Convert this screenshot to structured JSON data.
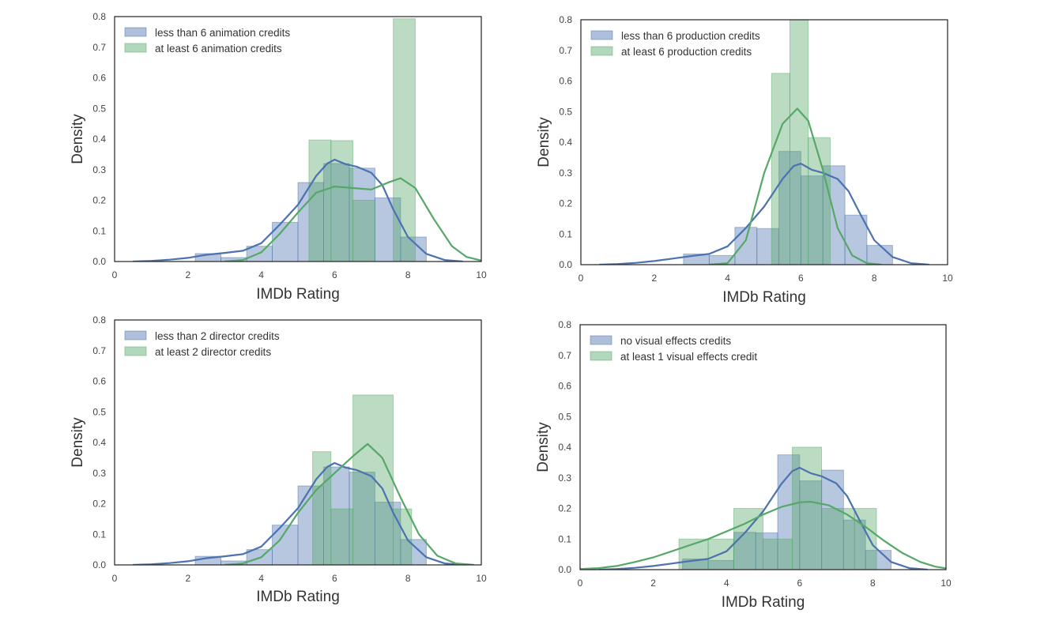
{
  "colors": {
    "series_a": "#4c72b0",
    "series_b": "#55a868",
    "frame": "#222222",
    "background": "#ffffff"
  },
  "chart_data": [
    {
      "type": "bar",
      "subtype": "histogram with density curves",
      "xlabel": "IMDb Rating",
      "ylabel": "Density",
      "xlim": [
        0,
        10
      ],
      "ylim": [
        0,
        0.8
      ],
      "xticks": [
        "0",
        "2",
        "4",
        "6",
        "8",
        "10"
      ],
      "yticks": [
        "0.0",
        "0.1",
        "0.2",
        "0.3",
        "0.4",
        "0.5",
        "0.6",
        "0.7",
        "0.8"
      ],
      "grid": false,
      "legend_position": "top-left",
      "series": [
        {
          "name": "less than 6 animation credits",
          "color": "#4c72b0",
          "bars": [
            [
              2.2,
              2.9,
              0.026
            ],
            [
              2.9,
              3.6,
              0.013
            ],
            [
              3.6,
              4.3,
              0.05
            ],
            [
              4.3,
              5.0,
              0.128
            ],
            [
              5.0,
              5.7,
              0.258
            ],
            [
              5.7,
              6.4,
              0.32
            ],
            [
              6.4,
              7.1,
              0.305
            ],
            [
              7.1,
              7.8,
              0.208
            ],
            [
              7.8,
              8.5,
              0.08
            ]
          ],
          "kde": [
            [
              0.5,
              0
            ],
            [
              1.0,
              0.002
            ],
            [
              1.5,
              0.006
            ],
            [
              2.0,
              0.012
            ],
            [
              2.5,
              0.022
            ],
            [
              3.0,
              0.028
            ],
            [
              3.5,
              0.035
            ],
            [
              4.0,
              0.06
            ],
            [
              4.5,
              0.12
            ],
            [
              5.0,
              0.185
            ],
            [
              5.5,
              0.28
            ],
            [
              5.8,
              0.32
            ],
            [
              6.0,
              0.333
            ],
            [
              6.3,
              0.318
            ],
            [
              6.6,
              0.31
            ],
            [
              7.0,
              0.29
            ],
            [
              7.3,
              0.25
            ],
            [
              7.6,
              0.17
            ],
            [
              8.0,
              0.08
            ],
            [
              8.5,
              0.025
            ],
            [
              9.0,
              0.005
            ],
            [
              9.5,
              0
            ]
          ]
        },
        {
          "name": "at least 6 animation credits",
          "color": "#55a868",
          "bars": [
            [
              5.3,
              5.9,
              0.397
            ],
            [
              5.9,
              6.5,
              0.395
            ],
            [
              6.5,
              7.1,
              0.2
            ],
            [
              7.6,
              8.2,
              0.793
            ]
          ],
          "kde": [
            [
              3.0,
              0
            ],
            [
              3.5,
              0.005
            ],
            [
              4.0,
              0.03
            ],
            [
              4.5,
              0.09
            ],
            [
              5.0,
              0.16
            ],
            [
              5.5,
              0.225
            ],
            [
              6.0,
              0.245
            ],
            [
              6.5,
              0.24
            ],
            [
              7.0,
              0.235
            ],
            [
              7.5,
              0.26
            ],
            [
              7.8,
              0.272
            ],
            [
              8.2,
              0.24
            ],
            [
              8.7,
              0.14
            ],
            [
              9.2,
              0.05
            ],
            [
              9.6,
              0.015
            ],
            [
              10.0,
              0.003
            ]
          ]
        }
      ]
    },
    {
      "type": "bar",
      "subtype": "histogram with density curves",
      "xlabel": "IMDb Rating",
      "ylabel": "Density",
      "xlim": [
        0,
        10
      ],
      "ylim": [
        0,
        0.8
      ],
      "xticks": [
        "0",
        "2",
        "4",
        "6",
        "8",
        "10"
      ],
      "yticks": [
        "0.0",
        "0.1",
        "0.2",
        "0.3",
        "0.4",
        "0.5",
        "0.6",
        "0.7",
        "0.8"
      ],
      "grid": false,
      "legend_position": "top-left",
      "series": [
        {
          "name": "less than 6 production credits",
          "color": "#4c72b0",
          "bars": [
            [
              2.8,
              3.5,
              0.035
            ],
            [
              3.5,
              4.2,
              0.03
            ],
            [
              4.2,
              4.8,
              0.122
            ],
            [
              4.8,
              5.4,
              0.118
            ],
            [
              5.4,
              6.0,
              0.37
            ],
            [
              6.0,
              6.6,
              0.29
            ],
            [
              6.6,
              7.2,
              0.323
            ],
            [
              7.2,
              7.8,
              0.162
            ],
            [
              7.8,
              8.5,
              0.063
            ]
          ],
          "kde": [
            [
              0.5,
              0
            ],
            [
              1.0,
              0.002
            ],
            [
              1.5,
              0.006
            ],
            [
              2.0,
              0.012
            ],
            [
              2.5,
              0.02
            ],
            [
              3.0,
              0.028
            ],
            [
              3.5,
              0.035
            ],
            [
              4.0,
              0.06
            ],
            [
              4.5,
              0.12
            ],
            [
              5.0,
              0.19
            ],
            [
              5.5,
              0.28
            ],
            [
              5.8,
              0.322
            ],
            [
              6.0,
              0.33
            ],
            [
              6.3,
              0.31
            ],
            [
              6.6,
              0.3
            ],
            [
              7.0,
              0.28
            ],
            [
              7.3,
              0.24
            ],
            [
              7.6,
              0.17
            ],
            [
              8.0,
              0.08
            ],
            [
              8.5,
              0.025
            ],
            [
              9.0,
              0.005
            ],
            [
              9.5,
              0
            ]
          ]
        },
        {
          "name": "at least 6 production credits",
          "color": "#55a868",
          "bars": [
            [
              5.2,
              5.7,
              0.625
            ],
            [
              5.7,
              6.2,
              0.81
            ],
            [
              6.2,
              6.8,
              0.415
            ]
          ],
          "kde": [
            [
              3.5,
              0
            ],
            [
              4.0,
              0.005
            ],
            [
              4.5,
              0.08
            ],
            [
              5.0,
              0.3
            ],
            [
              5.5,
              0.46
            ],
            [
              5.9,
              0.51
            ],
            [
              6.2,
              0.47
            ],
            [
              6.6,
              0.31
            ],
            [
              7.0,
              0.12
            ],
            [
              7.4,
              0.03
            ],
            [
              7.8,
              0.005
            ],
            [
              8.2,
              0
            ]
          ]
        }
      ]
    },
    {
      "type": "bar",
      "subtype": "histogram with density curves",
      "xlabel": "IMDb Rating",
      "ylabel": "Density",
      "xlim": [
        0,
        10
      ],
      "ylim": [
        0,
        0.8
      ],
      "xticks": [
        "0",
        "2",
        "4",
        "6",
        "8",
        "10"
      ],
      "yticks": [
        "0.0",
        "0.1",
        "0.2",
        "0.3",
        "0.4",
        "0.5",
        "0.6",
        "0.7",
        "0.8"
      ],
      "grid": false,
      "legend_position": "top-left",
      "series": [
        {
          "name": "less than 2 director credits",
          "color": "#4c72b0",
          "bars": [
            [
              2.2,
              2.9,
              0.028
            ],
            [
              2.9,
              3.6,
              0.013
            ],
            [
              3.6,
              4.3,
              0.05
            ],
            [
              4.3,
              5.0,
              0.13
            ],
            [
              5.0,
              5.7,
              0.258
            ],
            [
              5.7,
              6.4,
              0.32
            ],
            [
              6.4,
              7.1,
              0.303
            ],
            [
              7.1,
              7.8,
              0.205
            ],
            [
              7.8,
              8.5,
              0.083
            ]
          ],
          "kde": [
            [
              0.5,
              0
            ],
            [
              1.0,
              0.002
            ],
            [
              1.5,
              0.006
            ],
            [
              2.0,
              0.012
            ],
            [
              2.5,
              0.022
            ],
            [
              3.0,
              0.028
            ],
            [
              3.5,
              0.035
            ],
            [
              4.0,
              0.06
            ],
            [
              4.5,
              0.12
            ],
            [
              5.0,
              0.185
            ],
            [
              5.5,
              0.28
            ],
            [
              5.8,
              0.32
            ],
            [
              6.0,
              0.333
            ],
            [
              6.3,
              0.318
            ],
            [
              6.6,
              0.31
            ],
            [
              7.0,
              0.29
            ],
            [
              7.3,
              0.25
            ],
            [
              7.6,
              0.17
            ],
            [
              8.0,
              0.08
            ],
            [
              8.5,
              0.025
            ],
            [
              9.0,
              0.005
            ],
            [
              9.5,
              0
            ]
          ]
        },
        {
          "name": "at least 2 director credits",
          "color": "#55a868",
          "bars": [
            [
              5.4,
              5.9,
              0.37
            ],
            [
              5.9,
              6.5,
              0.183
            ],
            [
              6.5,
              7.6,
              0.555
            ],
            [
              7.6,
              8.1,
              0.183
            ]
          ],
          "kde": [
            [
              3.0,
              0
            ],
            [
              3.5,
              0.005
            ],
            [
              4.0,
              0.025
            ],
            [
              4.5,
              0.08
            ],
            [
              5.0,
              0.17
            ],
            [
              5.5,
              0.245
            ],
            [
              6.0,
              0.3
            ],
            [
              6.5,
              0.355
            ],
            [
              6.9,
              0.395
            ],
            [
              7.3,
              0.35
            ],
            [
              7.8,
              0.22
            ],
            [
              8.3,
              0.1
            ],
            [
              8.8,
              0.03
            ],
            [
              9.3,
              0.005
            ],
            [
              9.8,
              0
            ]
          ]
        }
      ]
    },
    {
      "type": "bar",
      "subtype": "histogram with density curves",
      "xlabel": "IMDb Rating",
      "ylabel": "Density",
      "xlim": [
        0,
        10
      ],
      "ylim": [
        0,
        0.8
      ],
      "xticks": [
        "0",
        "2",
        "4",
        "6",
        "8",
        "10"
      ],
      "yticks": [
        "0.0",
        "0.1",
        "0.2",
        "0.3",
        "0.4",
        "0.5",
        "0.6",
        "0.7",
        "0.8"
      ],
      "grid": false,
      "legend_position": "top-left",
      "series": [
        {
          "name": "no visual effects credits",
          "color": "#4c72b0",
          "bars": [
            [
              2.8,
              3.5,
              0.035
            ],
            [
              3.5,
              4.2,
              0.03
            ],
            [
              4.2,
              4.8,
              0.122
            ],
            [
              4.8,
              5.4,
              0.12
            ],
            [
              5.4,
              6.0,
              0.375
            ],
            [
              6.0,
              6.6,
              0.29
            ],
            [
              6.6,
              7.2,
              0.325
            ],
            [
              7.2,
              7.8,
              0.162
            ],
            [
              7.8,
              8.5,
              0.063
            ]
          ],
          "kde": [
            [
              0.5,
              0
            ],
            [
              1.0,
              0.002
            ],
            [
              1.5,
              0.006
            ],
            [
              2.0,
              0.012
            ],
            [
              2.5,
              0.02
            ],
            [
              3.0,
              0.028
            ],
            [
              3.5,
              0.035
            ],
            [
              4.0,
              0.06
            ],
            [
              4.5,
              0.12
            ],
            [
              5.0,
              0.19
            ],
            [
              5.5,
              0.28
            ],
            [
              5.8,
              0.322
            ],
            [
              6.0,
              0.333
            ],
            [
              6.3,
              0.315
            ],
            [
              6.6,
              0.305
            ],
            [
              7.0,
              0.282
            ],
            [
              7.3,
              0.24
            ],
            [
              7.6,
              0.17
            ],
            [
              8.0,
              0.08
            ],
            [
              8.5,
              0.025
            ],
            [
              9.0,
              0.005
            ],
            [
              9.5,
              0
            ]
          ]
        },
        {
          "name": "at least 1 visual effects credit",
          "color": "#55a868",
          "bars": [
            [
              2.7,
              3.5,
              0.1
            ],
            [
              3.5,
              4.2,
              0.1
            ],
            [
              4.2,
              5.0,
              0.2
            ],
            [
              5.0,
              5.8,
              0.1
            ],
            [
              5.8,
              6.6,
              0.4
            ],
            [
              6.6,
              7.5,
              0.2
            ],
            [
              7.5,
              8.1,
              0.2
            ]
          ],
          "kde": [
            [
              0,
              0.002
            ],
            [
              0.5,
              0.005
            ],
            [
              1.0,
              0.012
            ],
            [
              1.5,
              0.025
            ],
            [
              2.0,
              0.04
            ],
            [
              2.5,
              0.06
            ],
            [
              3.0,
              0.08
            ],
            [
              3.5,
              0.1
            ],
            [
              4.0,
              0.125
            ],
            [
              4.5,
              0.15
            ],
            [
              5.0,
              0.18
            ],
            [
              5.5,
              0.205
            ],
            [
              6.0,
              0.22
            ],
            [
              6.3,
              0.222
            ],
            [
              6.8,
              0.21
            ],
            [
              7.3,
              0.18
            ],
            [
              7.8,
              0.14
            ],
            [
              8.3,
              0.095
            ],
            [
              8.8,
              0.055
            ],
            [
              9.3,
              0.025
            ],
            [
              9.7,
              0.01
            ],
            [
              10.0,
              0.004
            ]
          ]
        }
      ]
    }
  ]
}
